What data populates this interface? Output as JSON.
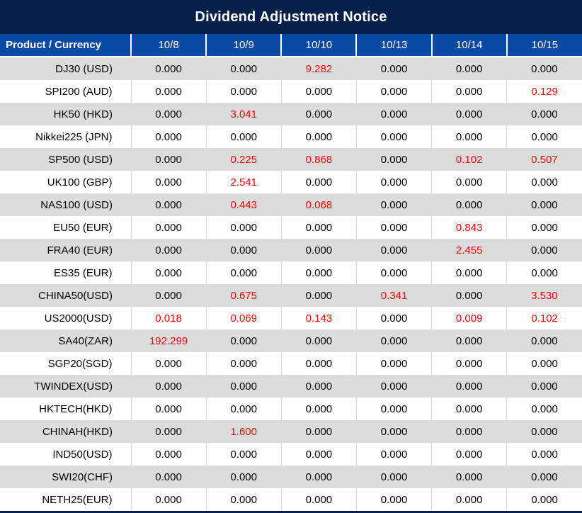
{
  "title": "Dividend Adjustment Notice",
  "colors": {
    "title_bar_bg": "#07204A",
    "header_bg": "#0A4AA3",
    "row_alt_bg": "#DCDCDC",
    "row_bg": "#FFFFFF",
    "value_text": "#000000",
    "highlight_red": "#FE0000"
  },
  "table": {
    "header_label": "Product / Currency",
    "dates": [
      "10/8",
      "10/9",
      "10/10",
      "10/13",
      "10/14",
      "10/15"
    ],
    "rows": [
      {
        "product": "DJ30 (USD)",
        "values": [
          "0.000",
          "0.000",
          "9.282",
          "0.000",
          "0.000",
          "0.000"
        ],
        "red_indices": [
          2
        ]
      },
      {
        "product": "SPI200 (AUD)",
        "values": [
          "0.000",
          "0.000",
          "0.000",
          "0.000",
          "0.000",
          "0.129"
        ],
        "red_indices": [
          5
        ]
      },
      {
        "product": "HK50 (HKD)",
        "values": [
          "0.000",
          "3.041",
          "0.000",
          "0.000",
          "0.000",
          "0.000"
        ],
        "red_indices": [
          1
        ]
      },
      {
        "product": "Nikkei225 (JPN)",
        "values": [
          "0.000",
          "0.000",
          "0.000",
          "0.000",
          "0.000",
          "0.000"
        ],
        "red_indices": []
      },
      {
        "product": "SP500 (USD)",
        "values": [
          "0.000",
          "0.225",
          "0.868",
          "0.000",
          "0.102",
          "0.507"
        ],
        "red_indices": [
          1,
          2,
          4,
          5
        ]
      },
      {
        "product": "UK100 (GBP)",
        "values": [
          "0.000",
          "2.541",
          "0.000",
          "0.000",
          "0.000",
          "0.000"
        ],
        "red_indices": [
          1
        ]
      },
      {
        "product": "NAS100 (USD)",
        "values": [
          "0.000",
          "0.443",
          "0.068",
          "0.000",
          "0.000",
          "0.000"
        ],
        "red_indices": [
          1,
          2
        ]
      },
      {
        "product": "EU50 (EUR)",
        "values": [
          "0.000",
          "0.000",
          "0.000",
          "0.000",
          "0.843",
          "0.000"
        ],
        "red_indices": [
          4
        ]
      },
      {
        "product": "FRA40 (EUR)",
        "values": [
          "0.000",
          "0.000",
          "0.000",
          "0.000",
          "2.455",
          "0.000"
        ],
        "red_indices": [
          4
        ]
      },
      {
        "product": "ES35 (EUR)",
        "values": [
          "0.000",
          "0.000",
          "0.000",
          "0.000",
          "0.000",
          "0.000"
        ],
        "red_indices": []
      },
      {
        "product": "CHINA50(USD)",
        "values": [
          "0.000",
          "0.675",
          "0.000",
          "0.341",
          "0.000",
          "3.530"
        ],
        "red_indices": [
          1,
          3,
          5
        ]
      },
      {
        "product": "US2000(USD)",
        "values": [
          "0.018",
          "0.069",
          "0.143",
          "0.000",
          "0.009",
          "0.102"
        ],
        "red_indices": [
          0,
          1,
          2,
          4,
          5
        ]
      },
      {
        "product": "SA40(ZAR)",
        "values": [
          "192.299",
          "0.000",
          "0.000",
          "0.000",
          "0.000",
          "0.000"
        ],
        "red_indices": [
          0
        ]
      },
      {
        "product": "SGP20(SGD)",
        "values": [
          "0.000",
          "0.000",
          "0.000",
          "0.000",
          "0.000",
          "0.000"
        ],
        "red_indices": []
      },
      {
        "product": "TWINDEX(USD)",
        "values": [
          "0.000",
          "0.000",
          "0.000",
          "0.000",
          "0.000",
          "0.000"
        ],
        "red_indices": []
      },
      {
        "product": "HKTECH(HKD)",
        "values": [
          "0.000",
          "0.000",
          "0.000",
          "0.000",
          "0.000",
          "0.000"
        ],
        "red_indices": []
      },
      {
        "product": "CHINAH(HKD)",
        "values": [
          "0.000",
          "1.600",
          "0.000",
          "0.000",
          "0.000",
          "0.000"
        ],
        "red_indices": [
          1
        ]
      },
      {
        "product": "IND50(USD)",
        "values": [
          "0.000",
          "0.000",
          "0.000",
          "0.000",
          "0.000",
          "0.000"
        ],
        "red_indices": []
      },
      {
        "product": "SWI20(CHF)",
        "values": [
          "0.000",
          "0.000",
          "0.000",
          "0.000",
          "0.000",
          "0.000"
        ],
        "red_indices": []
      },
      {
        "product": "NETH25(EUR)",
        "values": [
          "0.000",
          "0.000",
          "0.000",
          "0.000",
          "0.000",
          "0.000"
        ],
        "red_indices": []
      }
    ]
  }
}
